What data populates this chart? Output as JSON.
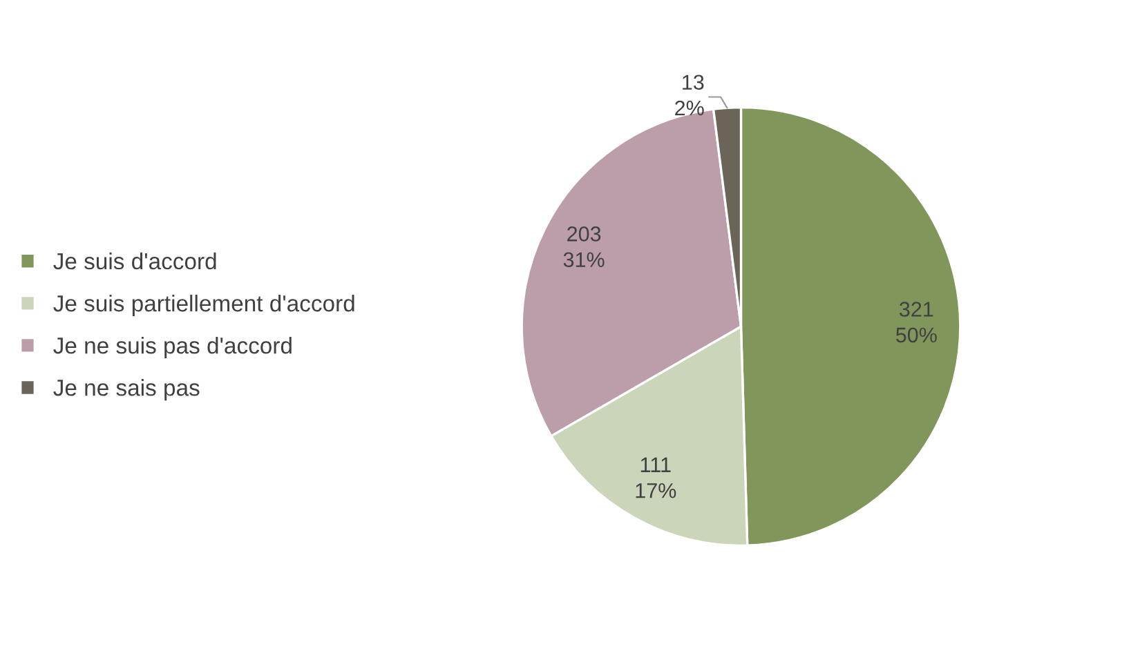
{
  "chart_data": {
    "type": "pie",
    "categories": [
      "Je suis d'accord",
      "Je suis partiellement d'accord",
      "Je ne suis pas d'accord",
      "Je ne sais pas"
    ],
    "values": [
      321,
      111,
      203,
      13
    ],
    "colors": [
      "#80965a",
      "#cad5b9",
      "#bb9ea9",
      "#6b6458"
    ],
    "value_labels": [
      "321\n50%",
      "111\n17%",
      "203\n31%",
      "13\n2%"
    ],
    "legend": "left"
  }
}
